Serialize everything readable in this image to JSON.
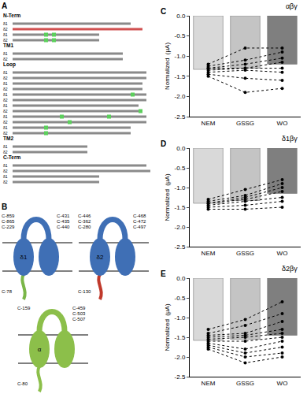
{
  "sequence_panel": {
    "label": "A",
    "sections": [
      {
        "title": "N-Term",
        "rows": [
          "δ1",
          "δ2",
          "δ1",
          "δ2"
        ]
      },
      {
        "title": "TM1",
        "rows": [
          "δ1",
          "δ2"
        ]
      },
      {
        "title": "Loop",
        "rows": [
          "δ1",
          "δ2",
          "δ1",
          "δ2",
          "δ1",
          "δ2",
          "δ1",
          "δ2",
          "δ1",
          "δ2",
          "δ1",
          "δ2"
        ]
      },
      {
        "title": "TM2",
        "rows": [
          "δ1",
          "δ2"
        ]
      },
      {
        "title": "C-Term",
        "rows": [
          "δ1",
          "δ2",
          "δ1",
          "δ2"
        ]
      }
    ]
  },
  "diagram_panel": {
    "label": "B",
    "proteins": [
      {
        "name": "δ1",
        "color": "#3f6fb5",
        "tail_color": "#7ab648",
        "top_left": [
          "C-859",
          "C-865",
          "C-229"
        ],
        "top_right": [
          "C-431",
          "C-435",
          "C-440"
        ],
        "bottom": [
          "C-78"
        ]
      },
      {
        "name": "δ2",
        "color": "#3f6fb5",
        "tail_color": "#c0392b",
        "top_left": [
          "C-446",
          "C-362",
          "C-280"
        ],
        "top_right": [
          "C-468",
          "C-472",
          "C-497"
        ],
        "bottom": [
          "C-130"
        ]
      },
      {
        "name": "α",
        "color": "#8cbf4a",
        "tail_color": "#8cbf4a",
        "top_left": [
          "C-159"
        ],
        "top_right": [
          "C-459",
          "C-503",
          "C-507"
        ],
        "bottom": [
          "C-80"
        ]
      }
    ]
  },
  "chart_data": [
    {
      "label": "C",
      "type": "bar",
      "title": "αβγ",
      "y_label": "Normalized  (µA)",
      "categories": [
        "NEM",
        "GSSG",
        "WO"
      ],
      "ylim": [
        -2.5,
        0
      ],
      "yticks": [
        -2.5,
        {
          "value": -2,
          "label": "-2.0"
        },
        -1.5,
        {
          "value": -1,
          "label": "-1.0"
        },
        -0.5,
        {
          "value": 0,
          "label": "0.0"
        }
      ],
      "grid": false,
      "series": [
        {
          "type": "bar",
          "colors": [
            "#d9d9d9",
            "#c4c4c4",
            "#7f7f7f"
          ],
          "values": [
            -1.33,
            -1.3,
            -1.2
          ]
        },
        {
          "type": "line",
          "color": "#000000",
          "marker": "circle",
          "line_style": "dotted",
          "values": [
            -1.2,
            -0.8,
            -0.8
          ]
        },
        {
          "type": "line",
          "color": "#000000",
          "marker": "circle",
          "line_style": "dotted",
          "values": [
            -1.25,
            -1.1,
            -0.9
          ]
        },
        {
          "type": "line",
          "color": "#000000",
          "marker": "circle",
          "line_style": "dotted",
          "values": [
            -1.3,
            -1.2,
            -1.05
          ]
        },
        {
          "type": "line",
          "color": "#000000",
          "marker": "circle",
          "line_style": "dotted",
          "values": [
            -1.3,
            -1.3,
            -1.15
          ]
        },
        {
          "type": "line",
          "color": "#000000",
          "marker": "circle",
          "line_style": "dotted",
          "values": [
            -1.35,
            -1.3,
            -1.3
          ]
        },
        {
          "type": "line",
          "color": "#000000",
          "marker": "circle",
          "line_style": "dotted",
          "values": [
            -1.4,
            -1.35,
            -1.4
          ]
        },
        {
          "type": "line",
          "color": "#000000",
          "marker": "circle",
          "line_style": "dotted",
          "values": [
            -1.45,
            -1.55,
            -1.6
          ]
        },
        {
          "type": "line",
          "color": "#000000",
          "marker": "circle",
          "line_style": "dotted",
          "values": [
            -1.5,
            -1.9,
            -1.8
          ]
        }
      ]
    },
    {
      "label": "D",
      "type": "bar",
      "title": "δ1βγ",
      "y_label": "Normalized  (µA)",
      "categories": [
        "NEM",
        "GSSG",
        "WO"
      ],
      "ylim": [
        -2.5,
        0
      ],
      "yticks": [
        -2.5,
        {
          "value": -2,
          "label": "-2.0"
        },
        -1.5,
        {
          "value": -1,
          "label": "-1.0"
        },
        -0.5,
        {
          "value": 0,
          "label": "0.0"
        }
      ],
      "grid": false,
      "series": [
        {
          "type": "bar",
          "colors": [
            "#d9d9d9",
            "#c4c4c4",
            "#7f7f7f"
          ],
          "values": [
            -1.4,
            -1.33,
            -1.15
          ]
        },
        {
          "type": "line",
          "color": "#000000",
          "marker": "circle",
          "line_style": "dotted",
          "values": [
            -1.3,
            -1.05,
            -0.8
          ]
        },
        {
          "type": "line",
          "color": "#000000",
          "marker": "circle",
          "line_style": "dotted",
          "values": [
            -1.35,
            -1.2,
            -0.9
          ]
        },
        {
          "type": "line",
          "color": "#000000",
          "marker": "circle",
          "line_style": "dotted",
          "values": [
            -1.4,
            -1.25,
            -1.0
          ]
        },
        {
          "type": "line",
          "color": "#000000",
          "marker": "circle",
          "line_style": "dotted",
          "values": [
            -1.4,
            -1.3,
            -1.1
          ]
        },
        {
          "type": "line",
          "color": "#000000",
          "marker": "circle",
          "line_style": "dotted",
          "values": [
            -1.45,
            -1.35,
            -1.25
          ]
        },
        {
          "type": "line",
          "color": "#000000",
          "marker": "circle",
          "line_style": "dotted",
          "values": [
            -1.5,
            -1.45,
            -1.35
          ]
        },
        {
          "type": "line",
          "color": "#000000",
          "marker": "circle",
          "line_style": "dotted",
          "values": [
            -1.55,
            -1.55,
            -1.5
          ]
        }
      ]
    },
    {
      "label": "E",
      "type": "bar",
      "title": "δ2βγ",
      "y_label": "Normalized  (µA)",
      "categories": [
        "NEM",
        "GSSG",
        "WO"
      ],
      "ylim": [
        -2.5,
        0
      ],
      "yticks": [
        -2.5,
        {
          "value": -2,
          "label": "-2.0"
        },
        -1.5,
        {
          "value": -1,
          "label": "-1.0"
        },
        -0.5,
        {
          "value": 0,
          "label": "0.0"
        }
      ],
      "grid": false,
      "series": [
        {
          "type": "bar",
          "colors": [
            "#d9d9d9",
            "#c4c4c4",
            "#7f7f7f"
          ],
          "values": [
            -1.58,
            -1.55,
            -1.45
          ]
        },
        {
          "type": "line",
          "color": "#000000",
          "marker": "circle",
          "line_style": "dotted",
          "values": [
            -1.3,
            -1.05,
            -0.6
          ]
        },
        {
          "type": "line",
          "color": "#000000",
          "marker": "circle",
          "line_style": "dotted",
          "values": [
            -1.4,
            -1.2,
            -0.9
          ]
        },
        {
          "type": "line",
          "color": "#000000",
          "marker": "circle",
          "line_style": "dotted",
          "values": [
            -1.45,
            -1.4,
            -1.1
          ]
        },
        {
          "type": "line",
          "color": "#000000",
          "marker": "circle",
          "line_style": "dotted",
          "values": [
            -1.5,
            -1.45,
            -1.3
          ]
        },
        {
          "type": "line",
          "color": "#000000",
          "marker": "circle",
          "line_style": "dotted",
          "values": [
            -1.55,
            -1.5,
            -1.4
          ]
        },
        {
          "type": "line",
          "color": "#000000",
          "marker": "circle",
          "line_style": "dotted",
          "values": [
            -1.6,
            -1.6,
            -1.5
          ]
        },
        {
          "type": "line",
          "color": "#000000",
          "marker": "circle",
          "line_style": "dotted",
          "values": [
            -1.65,
            -1.8,
            -1.6
          ]
        },
        {
          "type": "line",
          "color": "#000000",
          "marker": "circle",
          "line_style": "dotted",
          "values": [
            -1.7,
            -1.9,
            -1.75
          ]
        },
        {
          "type": "line",
          "color": "#000000",
          "marker": "circle",
          "line_style": "dotted",
          "values": [
            -1.75,
            -2.0,
            -1.9
          ]
        },
        {
          "type": "line",
          "color": "#000000",
          "marker": "circle",
          "line_style": "dotted",
          "values": [
            -1.8,
            -2.15,
            -2.0
          ]
        }
      ]
    }
  ]
}
